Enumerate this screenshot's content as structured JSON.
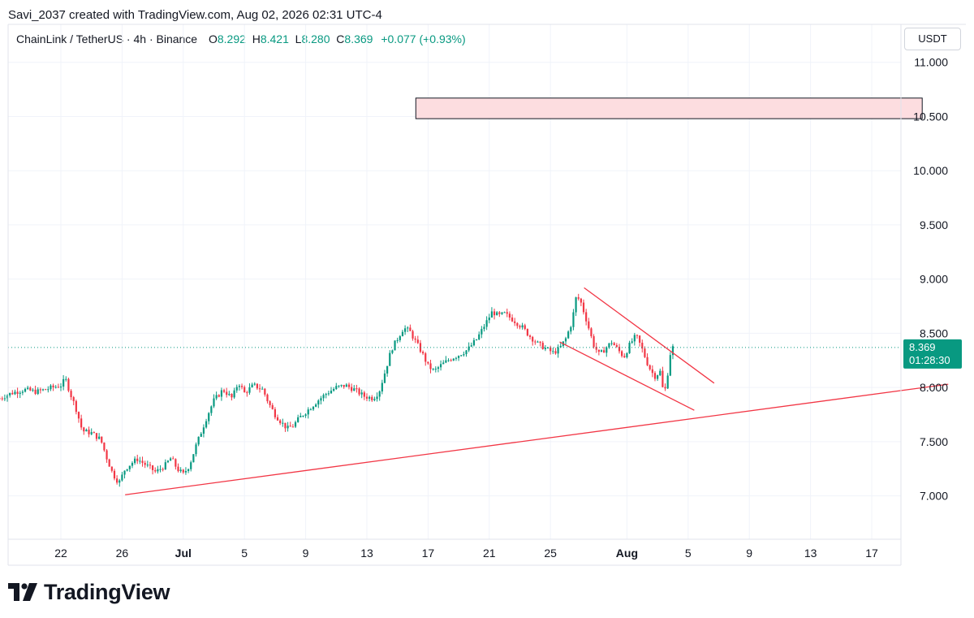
{
  "header": {
    "caption": "Savi_2037 created with TradingView.com, Aug 02, 2026 02:31 UTC-4"
  },
  "legend": {
    "symbol": "ChainLink / TetherUS · 4h · Binance",
    "open_label": "O",
    "open": "8.292",
    "high_label": "H",
    "high": "8.421",
    "low_label": "L",
    "low": "8.280",
    "close_label": "C",
    "close": "8.369",
    "change": "+0.077 (+0.93%)"
  },
  "price_scale": {
    "currency": "USDT",
    "last_price": "8.369",
    "countdown": "01:28:30"
  },
  "brand": {
    "name": "TradingView"
  },
  "colors": {
    "up": "#089981",
    "down": "#f23645",
    "trendline": "#f23645",
    "zone_fill": "#fddde0",
    "grid": "#f0f3fa",
    "price_line": "#089981"
  },
  "chart_data": {
    "type": "candlestick",
    "timeframe": "4h",
    "ylim": [
      6.6,
      11.35
    ],
    "yticks": [
      {
        "value": 7.0,
        "label": "7.000"
      },
      {
        "value": 7.5,
        "label": "7.500"
      },
      {
        "value": 8.0,
        "label": "8.000"
      },
      {
        "value": 8.5,
        "label": "8.500"
      },
      {
        "value": 9.0,
        "label": "9.000"
      },
      {
        "value": 9.5,
        "label": "9.500"
      },
      {
        "value": 10.0,
        "label": "10.000"
      },
      {
        "value": 10.5,
        "label": "10.500"
      },
      {
        "value": 11.0,
        "label": "11.000"
      }
    ],
    "xticks": [
      {
        "day": 22,
        "label": "22",
        "bold": false
      },
      {
        "day": 26,
        "label": "26",
        "bold": false
      },
      {
        "day": 30,
        "label": "Jul",
        "bold": true
      },
      {
        "day": 34,
        "label": "5",
        "bold": false
      },
      {
        "day": 38,
        "label": "9",
        "bold": false
      },
      {
        "day": 42,
        "label": "13",
        "bold": false
      },
      {
        "day": 46,
        "label": "17",
        "bold": false
      },
      {
        "day": 50,
        "label": "21",
        "bold": false
      },
      {
        "day": 54,
        "label": "25",
        "bold": false
      },
      {
        "day": 59,
        "label": "Aug",
        "bold": true
      },
      {
        "day": 63,
        "label": "5",
        "bold": false
      },
      {
        "day": 67,
        "label": "9",
        "bold": false
      },
      {
        "day": 71,
        "label": "13",
        "bold": false
      },
      {
        "day": 75,
        "label": "17",
        "bold": false
      }
    ],
    "close_path": [
      [
        18.0,
        7.9
      ],
      [
        18.8,
        7.95
      ],
      [
        19.6,
        7.98
      ],
      [
        20.4,
        7.96
      ],
      [
        21.2,
        7.99
      ],
      [
        22.0,
        8.02
      ],
      [
        22.3,
        8.08
      ],
      [
        22.6,
        7.95
      ],
      [
        23.0,
        7.8
      ],
      [
        23.4,
        7.6
      ],
      [
        24.0,
        7.58
      ],
      [
        24.6,
        7.52
      ],
      [
        25.0,
        7.35
      ],
      [
        25.4,
        7.2
      ],
      [
        25.8,
        7.12
      ],
      [
        26.2,
        7.25
      ],
      [
        26.6,
        7.3
      ],
      [
        27.0,
        7.34
      ],
      [
        27.6,
        7.28
      ],
      [
        28.2,
        7.22
      ],
      [
        28.8,
        7.28
      ],
      [
        29.2,
        7.35
      ],
      [
        29.6,
        7.25
      ],
      [
        30.0,
        7.2
      ],
      [
        30.4,
        7.28
      ],
      [
        30.8,
        7.45
      ],
      [
        31.2,
        7.6
      ],
      [
        31.6,
        7.75
      ],
      [
        32.0,
        7.88
      ],
      [
        32.6,
        7.98
      ],
      [
        33.2,
        7.9
      ],
      [
        33.6,
        8.05
      ],
      [
        34.0,
        7.95
      ],
      [
        34.6,
        8.02
      ],
      [
        35.2,
        7.98
      ],
      [
        35.6,
        7.85
      ],
      [
        36.0,
        7.75
      ],
      [
        36.4,
        7.68
      ],
      [
        36.8,
        7.62
      ],
      [
        37.2,
        7.65
      ],
      [
        37.6,
        7.72
      ],
      [
        38.2,
        7.8
      ],
      [
        38.8,
        7.88
      ],
      [
        39.4,
        7.95
      ],
      [
        40.0,
        8.0
      ],
      [
        40.6,
        8.02
      ],
      [
        41.2,
        7.98
      ],
      [
        41.8,
        7.92
      ],
      [
        42.4,
        7.9
      ],
      [
        42.8,
        7.96
      ],
      [
        43.2,
        8.15
      ],
      [
        43.6,
        8.35
      ],
      [
        44.0,
        8.45
      ],
      [
        44.4,
        8.55
      ],
      [
        44.8,
        8.52
      ],
      [
        45.2,
        8.42
      ],
      [
        45.6,
        8.32
      ],
      [
        46.0,
        8.2
      ],
      [
        46.4,
        8.15
      ],
      [
        46.8,
        8.2
      ],
      [
        47.4,
        8.26
      ],
      [
        48.0,
        8.3
      ],
      [
        48.6,
        8.35
      ],
      [
        49.2,
        8.45
      ],
      [
        49.8,
        8.6
      ],
      [
        50.2,
        8.7
      ],
      [
        50.6,
        8.66
      ],
      [
        51.0,
        8.68
      ],
      [
        51.6,
        8.62
      ],
      [
        52.2,
        8.55
      ],
      [
        52.6,
        8.48
      ],
      [
        53.2,
        8.4
      ],
      [
        53.8,
        8.35
      ],
      [
        54.2,
        8.32
      ],
      [
        54.6,
        8.36
      ],
      [
        55.0,
        8.45
      ],
      [
        55.4,
        8.6
      ],
      [
        55.7,
        8.85
      ],
      [
        56.0,
        8.78
      ],
      [
        56.4,
        8.6
      ],
      [
        56.8,
        8.4
      ],
      [
        57.2,
        8.3
      ],
      [
        57.6,
        8.36
      ],
      [
        58.0,
        8.42
      ],
      [
        58.4,
        8.35
      ],
      [
        58.8,
        8.28
      ],
      [
        59.2,
        8.4
      ],
      [
        59.6,
        8.48
      ],
      [
        60.0,
        8.35
      ],
      [
        60.4,
        8.2
      ],
      [
        60.8,
        8.1
      ],
      [
        61.2,
        8.15
      ],
      [
        61.4,
        7.92
      ],
      [
        61.6,
        8.05
      ],
      [
        61.8,
        8.3
      ],
      [
        62.0,
        8.369
      ]
    ],
    "zone": {
      "from_day": 45.2,
      "to_day": 78.3,
      "low": 10.48,
      "high": 10.67
    },
    "trendlines": [
      {
        "from": [
          26.2,
          7.01
        ],
        "to": [
          80.0,
          8.03
        ]
      },
      {
        "from": [
          56.2,
          8.92
        ],
        "to": [
          64.7,
          8.04
        ]
      },
      {
        "from": [
          54.6,
          8.42
        ],
        "to": [
          63.4,
          7.79
        ]
      }
    ],
    "last_price": 8.369
  }
}
